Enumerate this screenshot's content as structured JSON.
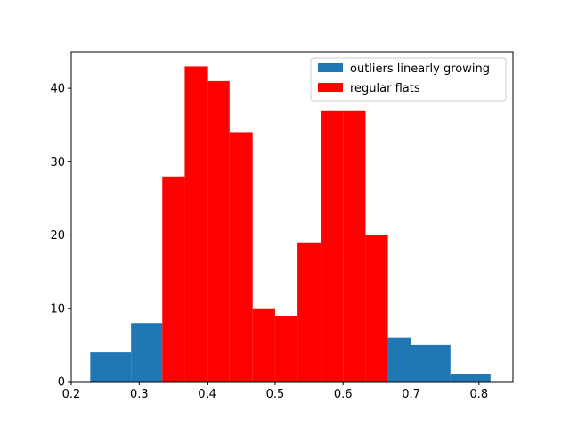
{
  "chart_data": {
    "type": "bar",
    "xlim": [
      0.2,
      0.85
    ],
    "ylim": [
      0,
      45
    ],
    "x_ticks": [
      0.2,
      0.3,
      0.4,
      0.5,
      0.6,
      0.7,
      0.8
    ],
    "x_tick_labels": [
      "0.2",
      "0.3",
      "0.4",
      "0.5",
      "0.6",
      "0.7",
      "0.8"
    ],
    "y_ticks": [
      0,
      10,
      20,
      30,
      40
    ],
    "y_tick_labels": [
      "0",
      "10",
      "20",
      "30",
      "40"
    ],
    "legend": {
      "placement": "top-right"
    },
    "series": [
      {
        "name": "outliers linearly growing",
        "color": "#1f77b4",
        "bins": [
          {
            "x0": 0.228,
            "x1": 0.288,
            "value": 4
          },
          {
            "x0": 0.288,
            "x1": 0.334,
            "value": 8
          },
          {
            "x0": 0.666,
            "x1": 0.7,
            "value": 6
          },
          {
            "x0": 0.7,
            "x1": 0.758,
            "value": 5
          },
          {
            "x0": 0.758,
            "x1": 0.817,
            "value": 1
          }
        ]
      },
      {
        "name": "regular flats",
        "color": "#ff0000",
        "bins": [
          {
            "x0": 0.334,
            "x1": 0.367,
            "value": 28
          },
          {
            "x0": 0.367,
            "x1": 0.4,
            "value": 43
          },
          {
            "x0": 0.4,
            "x1": 0.433,
            "value": 41
          },
          {
            "x0": 0.433,
            "x1": 0.467,
            "value": 34
          },
          {
            "x0": 0.467,
            "x1": 0.5,
            "value": 10
          },
          {
            "x0": 0.5,
            "x1": 0.533,
            "value": 9
          },
          {
            "x0": 0.533,
            "x1": 0.567,
            "value": 19
          },
          {
            "x0": 0.567,
            "x1": 0.6,
            "value": 37
          },
          {
            "x0": 0.6,
            "x1": 0.633,
            "value": 37
          },
          {
            "x0": 0.633,
            "x1": 0.666,
            "value": 20
          }
        ]
      }
    ]
  }
}
